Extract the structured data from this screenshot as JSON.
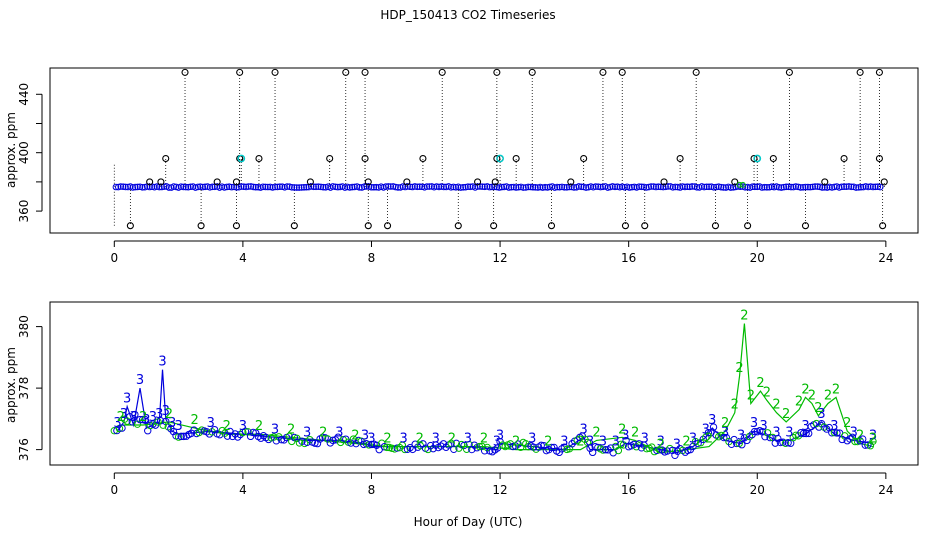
{
  "title": "HDP_150413  CO2 Timeseries",
  "xlabel": "Hour of Day (UTC)",
  "colors": {
    "flag0": "#000000",
    "flag1": "#00cccc",
    "flag2": "#00bb00",
    "flag3": "#0000dd"
  },
  "chart_data": [
    {
      "type": "scatter",
      "ylabel": "approx. ppm",
      "xlim": [
        -2,
        25
      ],
      "ylim": [
        345,
        458
      ],
      "xticks": [
        0,
        4,
        8,
        12,
        16,
        20,
        24
      ],
      "yticks": [
        360,
        400,
        440
      ],
      "ytick_labels": [
        "360",
        "400",
        "440"
      ],
      "baseline": 376.5,
      "series": [
        {
          "x": [
            1.6,
            3.9,
            3.95,
            4.5,
            6.7,
            7.8,
            9.6,
            11.9,
            12.0,
            12.5,
            14.6,
            17.6,
            19.9,
            20.0,
            20.5,
            22.7,
            23.8
          ],
          "y": [
            396,
            396,
            396,
            396,
            396,
            396,
            396,
            396,
            396,
            396,
            396,
            396,
            396,
            396,
            396,
            396,
            396
          ]
        },
        {
          "x": [
            2.2,
            3.9,
            5.0,
            7.2,
            7.8,
            10.2,
            11.9,
            13.0,
            15.2,
            15.8,
            18.1,
            21.0,
            23.2,
            23.8
          ],
          "y": [
            455,
            455,
            455,
            455,
            455,
            455,
            455,
            455,
            455,
            455,
            455,
            455,
            455,
            455
          ]
        },
        {
          "x": [
            0.5,
            2.7,
            3.8,
            5.6,
            7.9,
            8.5,
            10.7,
            11.8,
            13.6,
            15.9,
            16.5,
            18.7,
            19.7,
            21.5,
            23.9
          ],
          "y": [
            350,
            350,
            350,
            350,
            350,
            350,
            350,
            350,
            350,
            350,
            350,
            350,
            350,
            350,
            350
          ]
        },
        {
          "x": [
            1.1,
            1.45,
            3.2,
            3.8,
            6.1,
            7.9,
            9.1,
            11.3,
            11.85,
            14.2,
            17.1,
            19.3,
            22.1,
            23.95
          ],
          "y": [
            380,
            380,
            380,
            380,
            380,
            380,
            380,
            380,
            380,
            380,
            380,
            380,
            380,
            380
          ]
        }
      ]
    },
    {
      "type": "scatter",
      "ylabel": "approx. ppm",
      "xlim": [
        -2,
        25
      ],
      "ylim": [
        375.5,
        380.8
      ],
      "xticks": [
        0,
        4,
        8,
        12,
        16,
        20,
        24
      ],
      "yticks": [
        376,
        378,
        380
      ],
      "ytick_labels": [
        "376",
        "378",
        "380"
      ],
      "series": [
        {
          "name": "3",
          "x": [
            0.1,
            0.3,
            0.4,
            0.6,
            0.8,
            1.0,
            1.2,
            1.4,
            1.5,
            1.6,
            1.8,
            2.0,
            3.0,
            4.0,
            5.0,
            6.0,
            7.0,
            7.8,
            8.0,
            9.0,
            10.0,
            11.0,
            11.9,
            12.0,
            13.0,
            14.0,
            14.6,
            14.8,
            15.2,
            15.6,
            15.9,
            16.5,
            17.0,
            17.5,
            18.0,
            18.4,
            18.6,
            19.0,
            19.5,
            19.9,
            20.2,
            20.6,
            21.0,
            21.5,
            22.0,
            22.4,
            23.0,
            23.6
          ],
          "y": [
            376.6,
            376.9,
            377.4,
            376.8,
            378.0,
            376.7,
            376.8,
            376.9,
            378.6,
            377.0,
            376.6,
            376.5,
            376.6,
            376.5,
            376.4,
            376.3,
            376.3,
            376.2,
            376.1,
            376.1,
            376.1,
            376.1,
            376.0,
            376.2,
            376.1,
            376.0,
            376.4,
            376.0,
            376.0,
            376.0,
            376.2,
            376.1,
            376.0,
            375.9,
            376.1,
            376.4,
            376.7,
            376.3,
            376.2,
            376.6,
            376.5,
            376.3,
            376.3,
            376.5,
            376.9,
            376.5,
            376.3,
            376.2
          ]
        },
        {
          "name": "2",
          "x": [
            0.2,
            0.9,
            1.7,
            2.5,
            3.5,
            4.5,
            5.5,
            6.5,
            7.5,
            8.5,
            9.5,
            10.5,
            11.5,
            12.5,
            13.5,
            14.5,
            15.0,
            15.8,
            16.2,
            17.0,
            17.8,
            18.5,
            19.0,
            19.3,
            19.45,
            19.6,
            19.8,
            20.1,
            20.3,
            20.6,
            20.9,
            21.3,
            21.5,
            21.7,
            21.9,
            22.2,
            22.45,
            22.8,
            23.2,
            23.6
          ],
          "y": [
            376.8,
            376.8,
            376.9,
            376.7,
            376.5,
            376.5,
            376.4,
            376.3,
            376.2,
            376.1,
            376.1,
            376.1,
            376.1,
            376.0,
            376.0,
            376.0,
            376.3,
            376.4,
            376.3,
            375.9,
            376.0,
            376.1,
            376.6,
            377.2,
            378.4,
            380.1,
            377.5,
            377.9,
            377.6,
            377.2,
            376.9,
            377.3,
            377.7,
            377.5,
            377.1,
            377.5,
            377.7,
            376.6,
            376.2,
            376.1
          ]
        }
      ]
    }
  ]
}
